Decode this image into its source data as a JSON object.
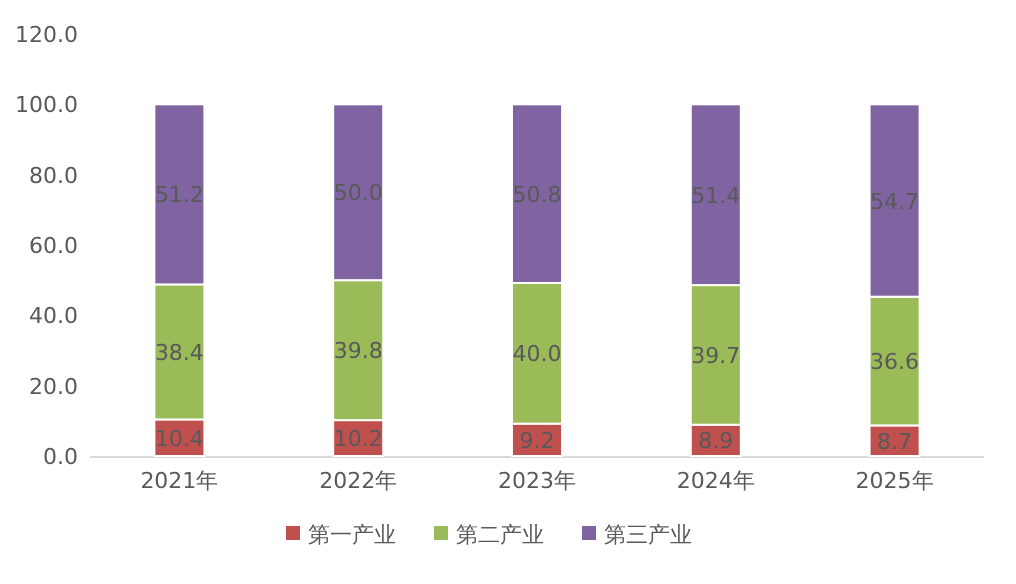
{
  "chart_data": {
    "type": "bar",
    "stacked": true,
    "categories": [
      "2021年",
      "2022年",
      "2023年",
      "2024年",
      "2025年"
    ],
    "series": [
      {
        "name": "第一产业",
        "color": "#c0504d",
        "values": [
          10.4,
          10.2,
          9.2,
          8.9,
          8.7
        ],
        "value_labels": [
          "10.4",
          "10.2",
          "9.2",
          "8.9",
          "8.7"
        ]
      },
      {
        "name": "第二产业",
        "color": "#9bbb59",
        "values": [
          38.4,
          39.8,
          40.0,
          39.7,
          36.6
        ],
        "value_labels": [
          "38.4",
          "39.8",
          "40.0",
          "39.7",
          "36.6"
        ]
      },
      {
        "name": "第三产业",
        "color": "#8064a2",
        "values": [
          51.2,
          50.0,
          50.8,
          51.4,
          54.7
        ],
        "value_labels": [
          "51.2",
          "50.0",
          "50.8",
          "51.4",
          "54.7"
        ]
      }
    ],
    "ylim": [
      0,
      120
    ],
    "yticks": [
      {
        "value": 0,
        "label": "0.0"
      },
      {
        "value": 20,
        "label": "20.0"
      },
      {
        "value": 40,
        "label": "40.0"
      },
      {
        "value": 60,
        "label": "60.0"
      },
      {
        "value": 80,
        "label": "80.0"
      },
      {
        "value": 100,
        "label": "100.0"
      },
      {
        "value": 120,
        "label": "120.0"
      }
    ],
    "grid": false,
    "legend": "bottom"
  }
}
